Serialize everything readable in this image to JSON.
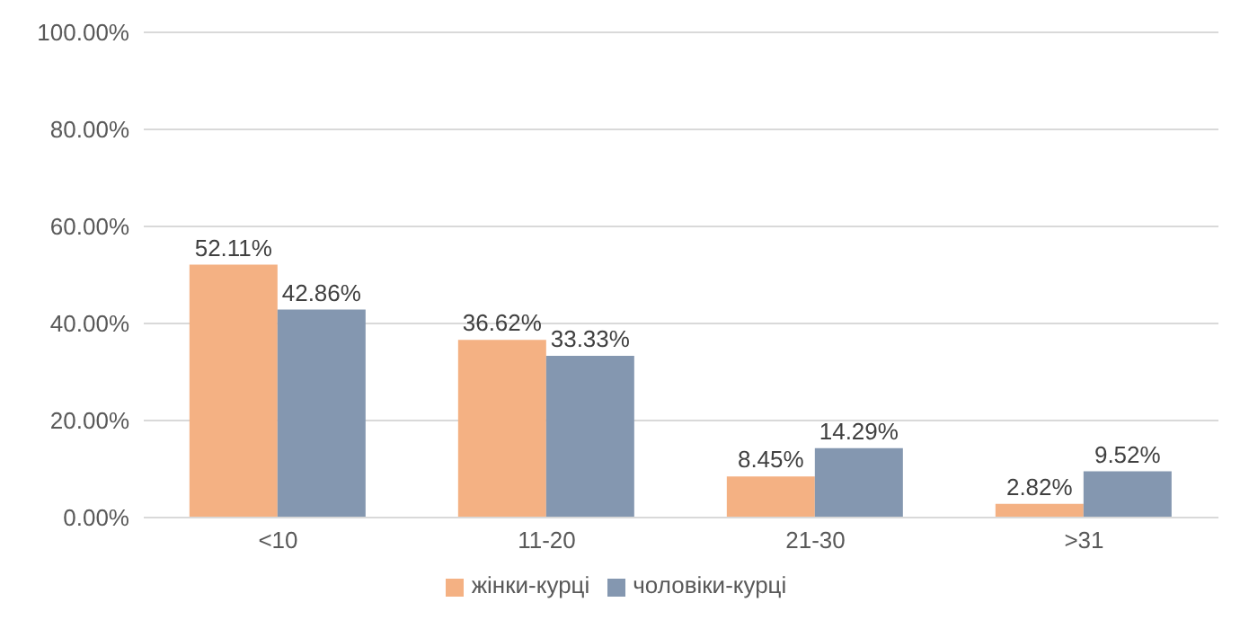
{
  "chart_data": {
    "type": "bar",
    "categories": [
      "<10",
      "11-20",
      "21-30",
      ">31"
    ],
    "series": [
      {
        "name": "жінки-курці",
        "color": "#f4b183",
        "values": [
          52.11,
          36.62,
          8.45,
          2.82
        ],
        "value_labels": [
          "52.11%",
          "36.62%",
          "8.45%",
          "2.82%"
        ]
      },
      {
        "name": "чоловіки-курці",
        "color": "#8497b0",
        "values": [
          42.86,
          33.33,
          14.29,
          9.52
        ],
        "value_labels": [
          "42.86%",
          "33.33%",
          "14.29%",
          "9.52%"
        ]
      }
    ],
    "ylim": [
      0,
      100
    ],
    "yticks": [
      {
        "value": 0,
        "label": "0.00%"
      },
      {
        "value": 20,
        "label": "20.00%"
      },
      {
        "value": 40,
        "label": "40.00%"
      },
      {
        "value": 60,
        "label": "60.00%"
      },
      {
        "value": 80,
        "label": "80.00%"
      },
      {
        "value": 100,
        "label": "100.00%"
      }
    ],
    "grid": "y",
    "legend": "bottom"
  }
}
